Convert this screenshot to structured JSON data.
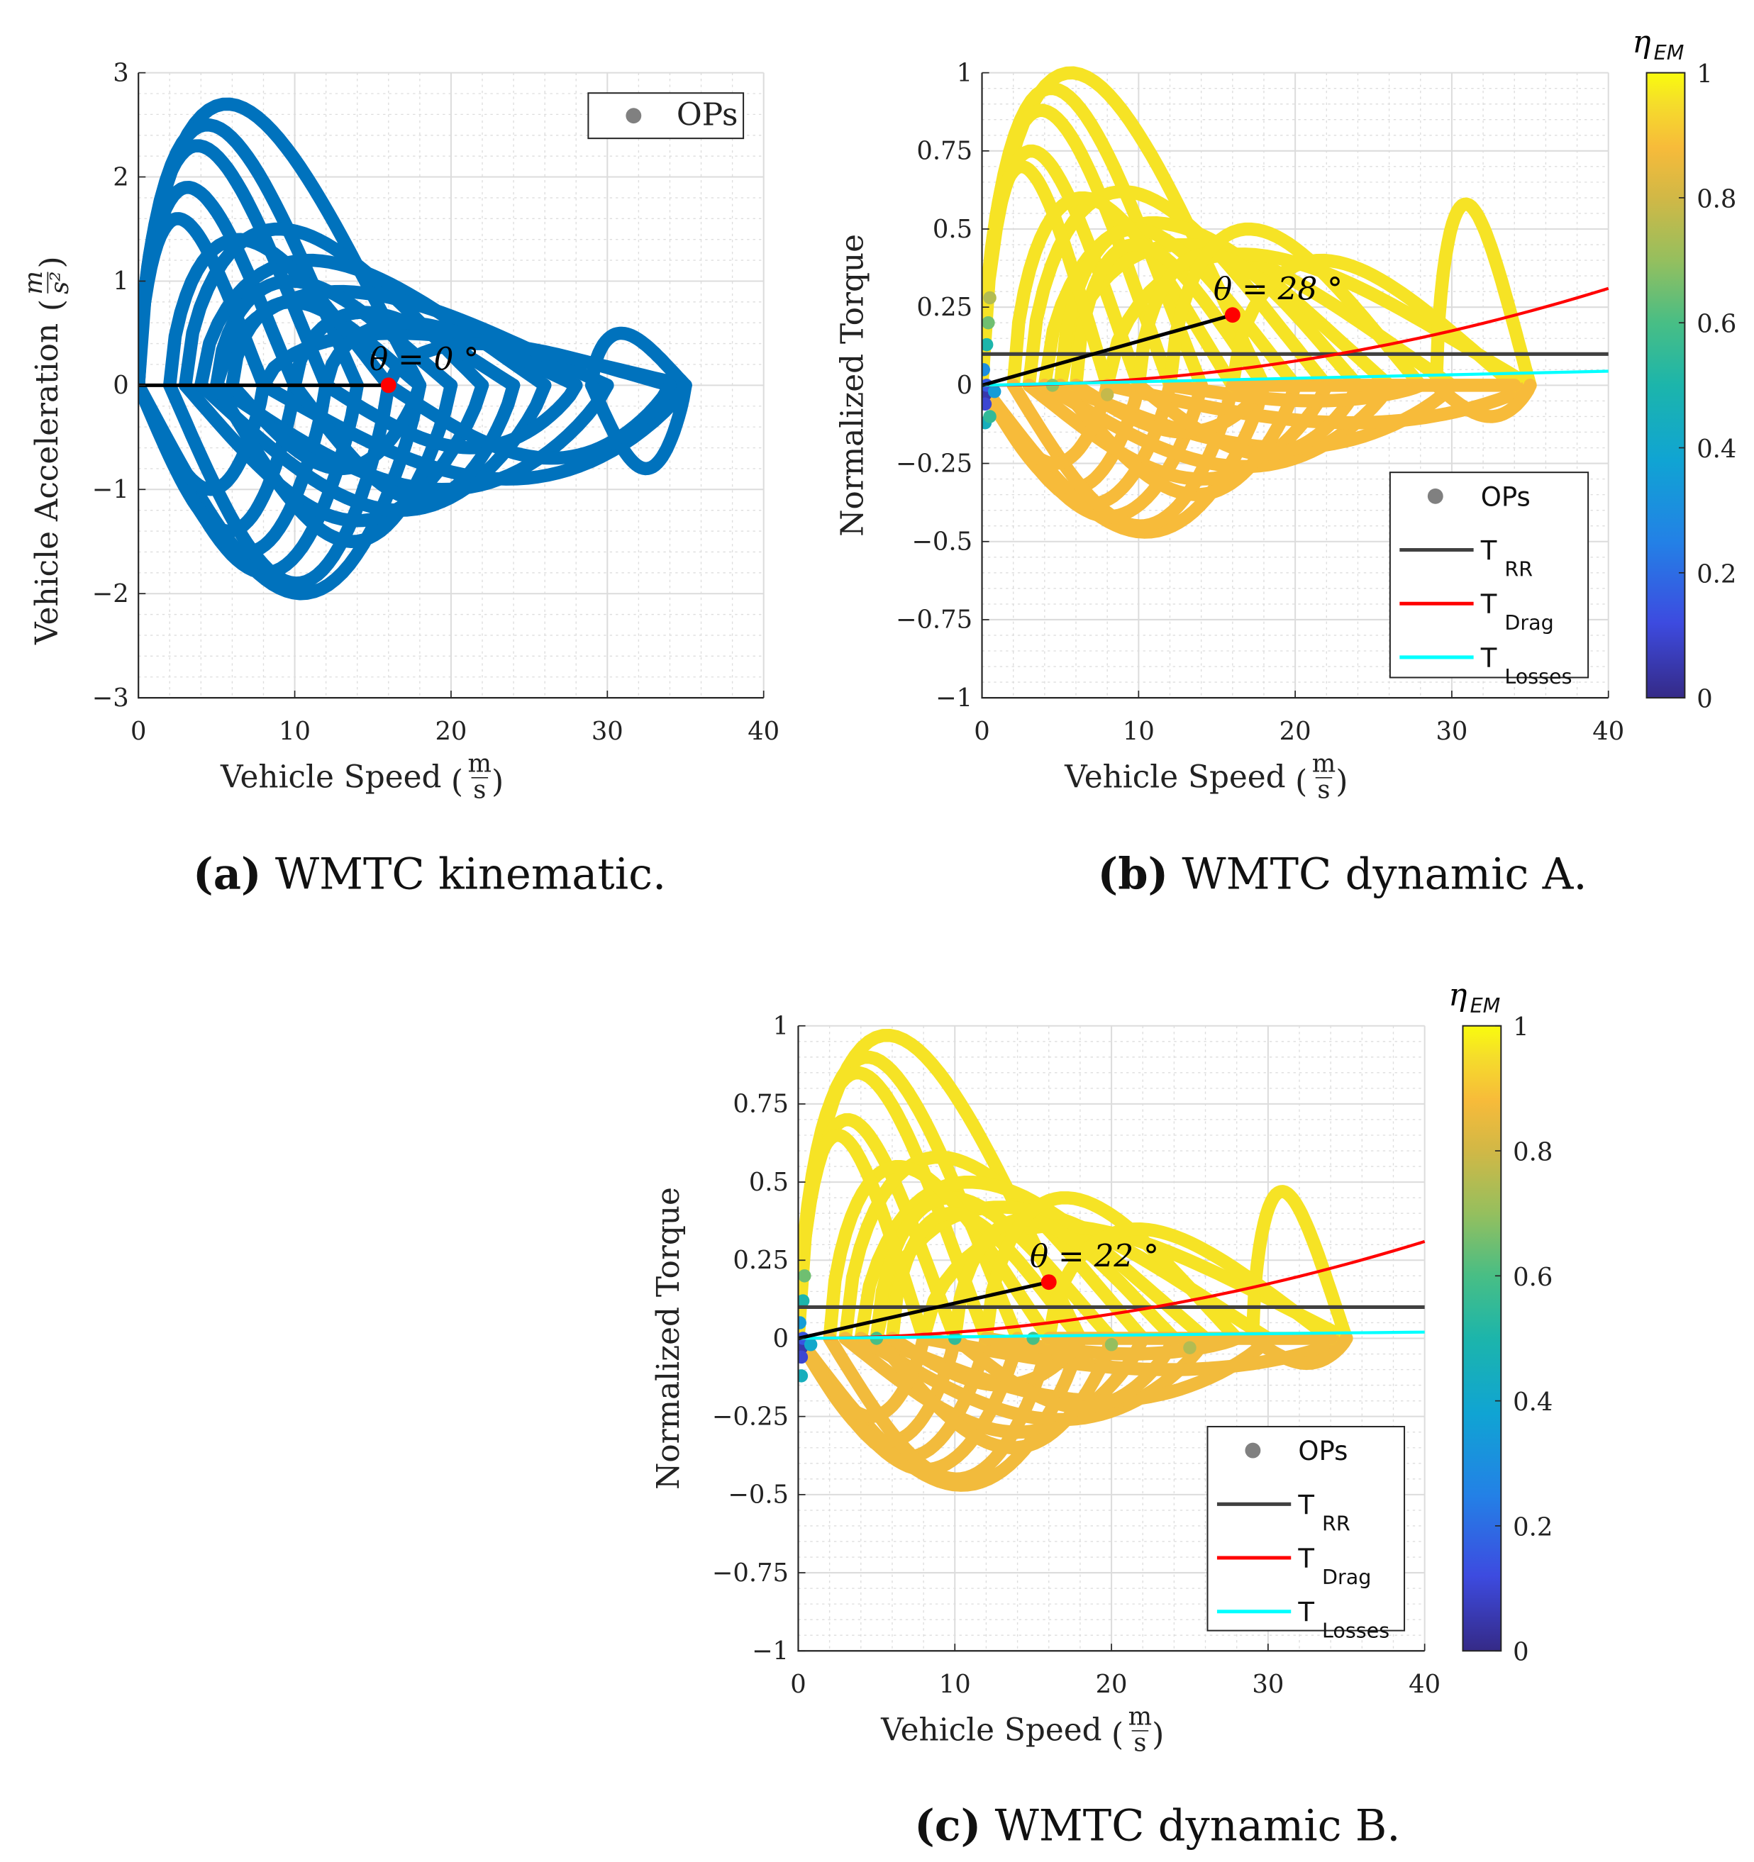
{
  "chart_data": [
    {
      "id": "a",
      "type": "scatter",
      "caption_label": "(a)",
      "caption_text": " WMTC kinematic.",
      "xlabel": "Vehicle Speed",
      "xunit_num": "m",
      "xunit_den": "s",
      "ylabel": "Vehicle Acceleration",
      "yunit_num": "m",
      "yunit_den": "s²",
      "xlim": [
        0,
        40
      ],
      "ylim": [
        -3,
        3
      ],
      "xticks": [
        0,
        10,
        20,
        30,
        40
      ],
      "xtick_labels": [
        "0",
        "10",
        "20",
        "30",
        "40"
      ],
      "yticks": [
        -3,
        -2,
        -1,
        0,
        1,
        2,
        3
      ],
      "ytick_labels": [
        "−3",
        "−2",
        "−1",
        "0",
        "1",
        "2",
        "3"
      ],
      "xminor": 2,
      "yminor": 0.2,
      "grid": true,
      "legend": {
        "placement": "top-right",
        "entries": [
          {
            "label": "OPs",
            "color": "#808080",
            "kind": "marker"
          }
        ]
      },
      "point_color": "#0072BD",
      "loops_description": "operating-point loops [v_start, v_end, peak_positive, peak_negative]",
      "loops": [
        [
          0,
          18,
          2.7,
          -2.0
        ],
        [
          0,
          14,
          2.5,
          -1.8
        ],
        [
          0,
          12,
          2.3,
          -1.6
        ],
        [
          0,
          10,
          1.9,
          -1.4
        ],
        [
          3,
          22,
          1.5,
          -1.3
        ],
        [
          4,
          26,
          1.2,
          -1.2
        ],
        [
          5,
          30,
          0.9,
          -1.0
        ],
        [
          8,
          35,
          0.5,
          -0.9
        ],
        [
          29,
          35,
          0.5,
          -0.8
        ],
        [
          5,
          20,
          1.0,
          -1.5
        ],
        [
          2,
          16,
          1.4,
          -1.9
        ],
        [
          6,
          18,
          0.8,
          -0.8
        ],
        [
          10,
          24,
          0.7,
          -1.1
        ],
        [
          12,
          28,
          0.6,
          -0.6
        ],
        [
          0,
          8,
          1.6,
          -1.0
        ],
        [
          16,
          34,
          0.4,
          -0.7
        ]
      ],
      "theta_line": {
        "from": [
          0,
          0
        ],
        "to": [
          16,
          0
        ]
      },
      "annotation": "θ = 0 °"
    },
    {
      "id": "b",
      "type": "scatter",
      "caption_label": "(b)",
      "caption_text": " WMTC dynamic A.",
      "xlabel": "Vehicle Speed",
      "xunit_num": "m",
      "xunit_den": "s",
      "ylabel": "Normalized Torque",
      "xlim": [
        0,
        40
      ],
      "ylim": [
        -1,
        1
      ],
      "xticks": [
        0,
        10,
        20,
        30,
        40
      ],
      "xtick_labels": [
        "0",
        "10",
        "20",
        "30",
        "40"
      ],
      "yticks": [
        -1,
        -0.75,
        -0.5,
        -0.25,
        0,
        0.25,
        0.5,
        0.75,
        1
      ],
      "ytick_labels": [
        "−1",
        "−0.75",
        "−0.5",
        "−0.25",
        "0",
        "0.25",
        "0.5",
        "0.75",
        "1"
      ],
      "xminor": 2,
      "yminor": 0.05,
      "grid": true,
      "colorbar": {
        "label": "η",
        "label_sub": "EM",
        "ticks": [
          0,
          0.2,
          0.4,
          0.6,
          0.8,
          1
        ],
        "tick_labels": [
          "0",
          "0.2",
          "0.4",
          "0.6",
          "0.8",
          "1"
        ],
        "colormap": "parula"
      },
      "legend": {
        "placement": "bottom-right",
        "entries": [
          {
            "label": "OPs",
            "sub": "",
            "color": "#808080",
            "kind": "marker"
          },
          {
            "label": "T",
            "sub": "RR",
            "color": "#404040",
            "kind": "line"
          },
          {
            "label": "T",
            "sub": "Drag",
            "color": "#FF0000",
            "kind": "line"
          },
          {
            "label": "T",
            "sub": "Losses",
            "color": "#00FFFF",
            "kind": "line"
          }
        ]
      },
      "eta_accel": 0.96,
      "eta_decel": 0.88,
      "loops": [
        [
          0,
          18,
          1.0,
          -0.47
        ],
        [
          0,
          14,
          0.95,
          -0.42
        ],
        [
          0,
          12,
          0.88,
          -0.38
        ],
        [
          0,
          10,
          0.75,
          -0.33
        ],
        [
          3,
          22,
          0.62,
          -0.3
        ],
        [
          4,
          26,
          0.52,
          -0.26
        ],
        [
          5,
          30,
          0.45,
          -0.2
        ],
        [
          8,
          35,
          0.42,
          -0.12
        ],
        [
          29,
          35,
          0.58,
          -0.1
        ],
        [
          5,
          20,
          0.5,
          -0.35
        ],
        [
          2,
          16,
          0.6,
          -0.45
        ],
        [
          6,
          18,
          0.45,
          -0.15
        ],
        [
          10,
          24,
          0.42,
          -0.22
        ],
        [
          12,
          28,
          0.5,
          -0.05
        ],
        [
          0,
          8,
          0.7,
          -0.25
        ],
        [
          16,
          34,
          0.4,
          0.0
        ]
      ],
      "low_speed_points": [
        [
          0.2,
          -0.03,
          0.05
        ],
        [
          0.2,
          -0.06,
          0.1
        ],
        [
          0.3,
          0.0,
          0.15
        ],
        [
          0.1,
          0.05,
          0.3
        ],
        [
          0.2,
          -0.12,
          0.45
        ],
        [
          0.3,
          0.13,
          0.5
        ],
        [
          0.4,
          0.2,
          0.65
        ],
        [
          0.5,
          0.28,
          0.75
        ],
        [
          0.5,
          -0.1,
          0.55
        ],
        [
          0.8,
          -0.02,
          0.35
        ],
        [
          4.5,
          0.0,
          0.7
        ],
        [
          8,
          -0.03,
          0.78
        ]
      ],
      "lines": {
        "T_RR": 0.1,
        "T_Drag_at_40": 0.31,
        "T_Losses_at_40": 0.045
      },
      "theta_line": {
        "from": [
          0,
          0
        ],
        "to": [
          16,
          0.225
        ]
      },
      "annotation": "θ = 28 °"
    },
    {
      "id": "c",
      "type": "scatter",
      "caption_label": "(c)",
      "caption_text": " WMTC dynamic B.",
      "xlabel": "Vehicle Speed",
      "xunit_num": "m",
      "xunit_den": "s",
      "ylabel": "Normalized Torque",
      "xlim": [
        0,
        40
      ],
      "ylim": [
        -1,
        1
      ],
      "xticks": [
        0,
        10,
        20,
        30,
        40
      ],
      "xtick_labels": [
        "0",
        "10",
        "20",
        "30",
        "40"
      ],
      "yticks": [
        -1,
        -0.75,
        -0.5,
        -0.25,
        0,
        0.25,
        0.5,
        0.75,
        1
      ],
      "ytick_labels": [
        "−1",
        "−0.75",
        "−0.5",
        "−0.25",
        "0",
        "0.25",
        "0.5",
        "0.75",
        "1"
      ],
      "xminor": 2,
      "yminor": 0.05,
      "grid": true,
      "colorbar": {
        "label": "η",
        "label_sub": "EM",
        "ticks": [
          0,
          0.2,
          0.4,
          0.6,
          0.8,
          1
        ],
        "tick_labels": [
          "0",
          "0.2",
          "0.4",
          "0.6",
          "0.8",
          "1"
        ],
        "colormap": "parula"
      },
      "legend": {
        "placement": "bottom-right",
        "entries": [
          {
            "label": "OPs",
            "sub": "",
            "color": "#808080",
            "kind": "marker"
          },
          {
            "label": "T",
            "sub": "RR",
            "color": "#404040",
            "kind": "line"
          },
          {
            "label": "T",
            "sub": "Drag",
            "color": "#FF0000",
            "kind": "line"
          },
          {
            "label": "T",
            "sub": "Losses",
            "color": "#00FFFF",
            "kind": "line"
          }
        ]
      },
      "eta_accel": 0.96,
      "eta_decel": 0.87,
      "loops": [
        [
          0,
          18,
          0.97,
          -0.47
        ],
        [
          0,
          14,
          0.9,
          -0.42
        ],
        [
          0,
          12,
          0.85,
          -0.38
        ],
        [
          0,
          10,
          0.7,
          -0.33
        ],
        [
          3,
          22,
          0.58,
          -0.3
        ],
        [
          4,
          26,
          0.5,
          -0.26
        ],
        [
          5,
          30,
          0.42,
          -0.2
        ],
        [
          8,
          35,
          0.36,
          -0.1
        ],
        [
          29,
          35,
          0.47,
          -0.08
        ],
        [
          5,
          20,
          0.45,
          -0.35
        ],
        [
          2,
          16,
          0.55,
          -0.45
        ],
        [
          6,
          18,
          0.4,
          -0.15
        ],
        [
          10,
          24,
          0.38,
          -0.22
        ],
        [
          12,
          28,
          0.45,
          -0.05
        ],
        [
          0,
          8,
          0.65,
          -0.25
        ],
        [
          16,
          34,
          0.35,
          0.0
        ]
      ],
      "low_speed_points": [
        [
          0.2,
          -0.03,
          0.05
        ],
        [
          0.2,
          -0.06,
          0.1
        ],
        [
          0.3,
          0.0,
          0.15
        ],
        [
          0.1,
          0.05,
          0.35
        ],
        [
          0.2,
          -0.12,
          0.45
        ],
        [
          0.3,
          0.12,
          0.5
        ],
        [
          0.4,
          0.2,
          0.65
        ],
        [
          0.8,
          -0.02,
          0.4
        ],
        [
          5,
          0.0,
          0.6
        ],
        [
          10,
          0.0,
          0.55
        ],
        [
          15,
          0.0,
          0.6
        ],
        [
          20,
          -0.02,
          0.7
        ],
        [
          25,
          -0.03,
          0.75
        ]
      ],
      "lines": {
        "T_RR": 0.1,
        "T_Drag_at_40": 0.31,
        "T_Losses_at_40": 0.02
      },
      "theta_line": {
        "from": [
          0,
          0
        ],
        "to": [
          16,
          0.18
        ]
      },
      "annotation": "θ = 22 °"
    }
  ]
}
